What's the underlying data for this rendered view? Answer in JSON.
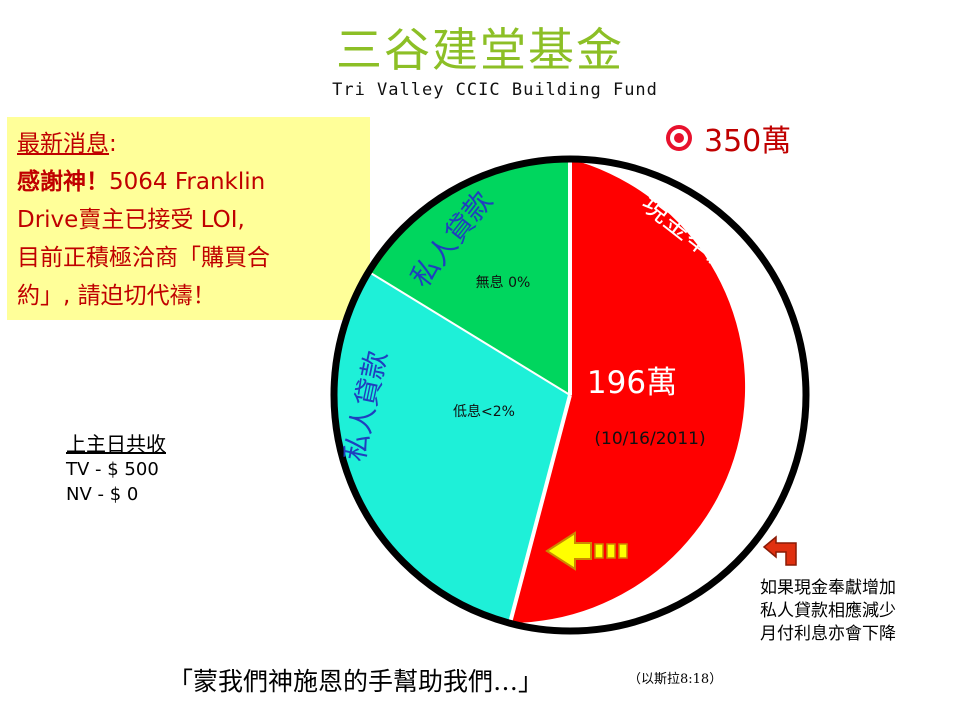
{
  "title": "三谷建堂基金",
  "subtitle": "Tri Valley CCIC Building Fund",
  "goal": {
    "icon": "target-icon",
    "text": "350萬"
  },
  "news": {
    "heading": "最新消息",
    "colon": ":",
    "line1_bold": "感謝神！",
    "line1_rest": "5064 Franklin",
    "line2": "Drive賣主已接受 LOI,",
    "line3": "目前正積極洽商「購買合",
    "line4": "約」, 請迫切代禱！"
  },
  "pie": {
    "cash_label": "現金奉獻",
    "cash_amount": "196萬",
    "cash_date": "(10/16/2011)",
    "loan_zero_label": "私人貸款",
    "loan_zero_rate": "無息 0%",
    "loan_low_label": "私人貸款",
    "loan_low_rate": "低息<2%"
  },
  "chart_data": {
    "type": "pie",
    "slices": [
      {
        "label": "現金奉獻",
        "value": 196,
        "color": "#ff0000"
      },
      {
        "label": "私人貸款 低息<2%",
        "color": "#1ef0d8"
      },
      {
        "label": "私人貸款 無息 0%",
        "color": "#00d65e"
      }
    ]
  },
  "sunday": {
    "heading": "上主日共收",
    "tv": "TV - $ 500",
    "nv": "NV - $ 0"
  },
  "effect_note": {
    "line1": "如果現金奉獻增加",
    "line2": "私人貸款相應減少",
    "line3": "月付利息亦會下降"
  },
  "quote": "「蒙我們神施恩的手幫助我們…」",
  "quote_ref": "（以斯拉8:18）",
  "colors": {
    "title": "#8cbf26",
    "cash": "#ff0000",
    "loan_low": "#1ef0d8",
    "loan_zero": "#00d65e",
    "news_bg": "#ffff99",
    "news_text": "#c00000",
    "arrow": "#ffff00"
  }
}
